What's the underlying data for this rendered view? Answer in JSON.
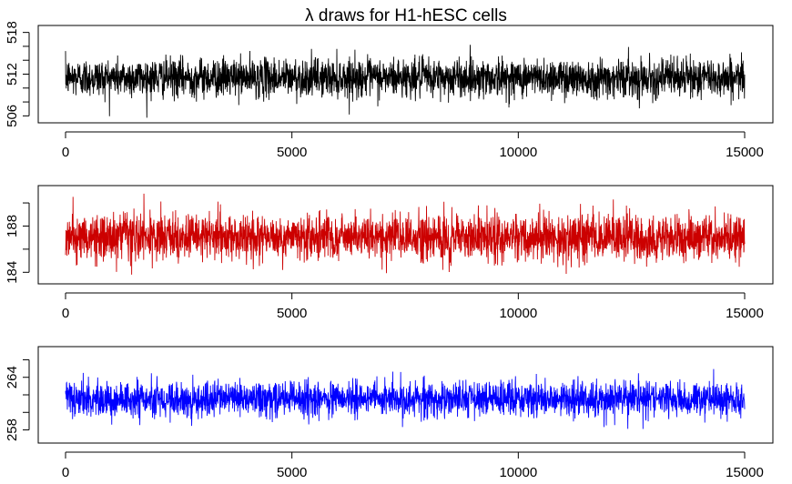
{
  "title": "λ draws for H1-hESC cells",
  "chart_data": [
    {
      "type": "line",
      "title": "λ draws for H1-hESC cells",
      "xlabel": "",
      "ylabel": "",
      "color": "#000000",
      "xlim": [
        0,
        15000
      ],
      "ylim": [
        505,
        519
      ],
      "x_ticks": [
        0,
        5000,
        10000,
        15000
      ],
      "x_tick_labels": [
        "0",
        "5000",
        "10000",
        "15000"
      ],
      "y_ticks": [
        506,
        508,
        510,
        512,
        514,
        516,
        518
      ],
      "y_tick_labels": [
        "506",
        "",
        "",
        "512",
        "",
        "",
        "518"
      ],
      "series": [
        {
          "n": 15000,
          "center": 511.5,
          "typical_range": [
            509,
            514.5
          ],
          "min": 505.0,
          "max": 518.5
        }
      ]
    },
    {
      "type": "line",
      "title": "",
      "xlabel": "",
      "ylabel": "",
      "color": "#cc0000",
      "xlim": [
        0,
        15000
      ],
      "ylim": [
        183,
        191.5
      ],
      "x_ticks": [
        0,
        5000,
        10000,
        15000
      ],
      "x_tick_labels": [
        "0",
        "5000",
        "10000",
        "15000"
      ],
      "y_ticks": [
        184,
        186,
        188,
        190
      ],
      "y_tick_labels": [
        "184",
        "",
        "188",
        ""
      ],
      "series": [
        {
          "n": 15000,
          "center": 187,
          "typical_range": [
            185,
            189
          ],
          "min": 183.3,
          "max": 190.8
        }
      ]
    },
    {
      "type": "line",
      "title": "",
      "xlabel": "",
      "ylabel": "",
      "color": "#0000ff",
      "xlim": [
        0,
        15000
      ],
      "ylim": [
        256.5,
        267.5
      ],
      "x_ticks": [
        0,
        5000,
        10000,
        15000
      ],
      "x_tick_labels": [
        "0",
        "5000",
        "10000",
        "15000"
      ],
      "y_ticks": [
        258,
        260,
        262,
        264,
        266
      ],
      "y_tick_labels": [
        "258",
        "",
        "",
        "264",
        ""
      ],
      "series": [
        {
          "n": 15000,
          "center": 261.5,
          "typical_range": [
            259.5,
            263.5
          ],
          "min": 257.0,
          "max": 266.8
        }
      ]
    }
  ]
}
